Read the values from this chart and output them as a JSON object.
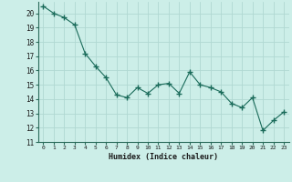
{
  "x": [
    0,
    1,
    2,
    3,
    4,
    5,
    6,
    7,
    8,
    9,
    10,
    11,
    12,
    13,
    14,
    15,
    16,
    17,
    18,
    19,
    20,
    21,
    22,
    23
  ],
  "y": [
    20.5,
    20.0,
    19.7,
    19.2,
    17.2,
    16.3,
    15.5,
    14.3,
    14.1,
    14.8,
    14.4,
    15.0,
    15.1,
    14.4,
    15.9,
    15.0,
    14.8,
    14.5,
    13.7,
    13.4,
    14.1,
    11.8,
    12.5,
    13.1
  ],
  "xlim": [
    -0.5,
    23.5
  ],
  "ylim": [
    11,
    20.8
  ],
  "yticks": [
    11,
    12,
    13,
    14,
    15,
    16,
    17,
    18,
    19,
    20
  ],
  "xticks": [
    0,
    1,
    2,
    3,
    4,
    5,
    6,
    7,
    8,
    9,
    10,
    11,
    12,
    13,
    14,
    15,
    16,
    17,
    18,
    19,
    20,
    21,
    22,
    23
  ],
  "xlabel": "Humidex (Indice chaleur)",
  "line_color": "#1a6b5a",
  "marker": "+",
  "marker_size": 4,
  "bg_color": "#cceee8",
  "grid_color": "#b0d8d2",
  "title": ""
}
